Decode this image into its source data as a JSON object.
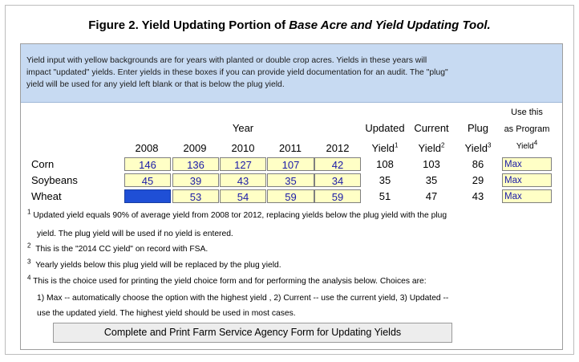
{
  "figure": {
    "title_prefix": "Figure 2.  Yield Updating Portion of ",
    "title_italic": "Base Acre and Yield Updating Tool."
  },
  "info_lines": [
    "Yield input with yellow backgrounds are for years with planted or double crop acres.  Yields in these years will",
    "impact \"updated\" yields.  Enter yields in these boxes if you can provide yield documentation for an audit. The \"plug\"",
    "yield will be used for any yield left blank or that is below the plug yield."
  ],
  "headers": {
    "year": "Year",
    "years": [
      "2008",
      "2009",
      "2010",
      "2011",
      "2012"
    ],
    "updated_top": "Updated",
    "updated_bottom": "Yield",
    "updated_sup": "1",
    "current_top": "Current",
    "current_bottom": "Yield",
    "current_sup": "2",
    "plug_top": "Plug",
    "plug_bottom": "Yield",
    "plug_sup": "3",
    "choice_1": "Use this",
    "choice_2": "as Program",
    "choice_3": "Yield",
    "choice_sup": "4"
  },
  "rows": [
    {
      "crop": "Corn",
      "yields": [
        "146",
        "136",
        "127",
        "107",
        "42"
      ],
      "updated": "108",
      "current": "103",
      "plug": "86",
      "choice": "Max"
    },
    {
      "crop": "Soybeans",
      "yields": [
        "45",
        "39",
        "43",
        "35",
        "34"
      ],
      "updated": "35",
      "current": "35",
      "plug": "29",
      "choice": "Max"
    },
    {
      "crop": "Wheat",
      "yields": [
        "",
        "53",
        "54",
        "59",
        "59"
      ],
      "updated": "51",
      "current": "47",
      "plug": "43",
      "choice": "Max"
    }
  ],
  "notes": {
    "n1_sup": "1",
    "n1_a": "Updated yield equals 90% of average yield from 2008 tor 2012, replacing yields below the plug yield with the plug",
    "n1_b": "yield.  The plug yield will be used if no yield is entered.",
    "n2_sup": "2",
    "n2": "This is the \"2014 CC yield\" on record with FSA.",
    "n3_sup": "3",
    "n3": "Yearly yields below this plug yield will be replaced by the plug yield.",
    "n4_sup": "4",
    "n4_a": "This is the choice used for printing the yield choice form and for performing the analysis below.  Choices are:",
    "n4_b": "1) Max -- automatically choose the option with the highest yield , 2) Current -- use the current yield,  3) Updated --",
    "n4_c": "use the updated yield.  The highest yield should be used in most cases."
  },
  "button": {
    "label": "Complete and Print Farm Service Agency Form for Updating Yields"
  },
  "colors": {
    "input_bg": "#ffffc6",
    "header_bg": "#c7daf2",
    "no_acres_cell": "#1f4fd6"
  }
}
